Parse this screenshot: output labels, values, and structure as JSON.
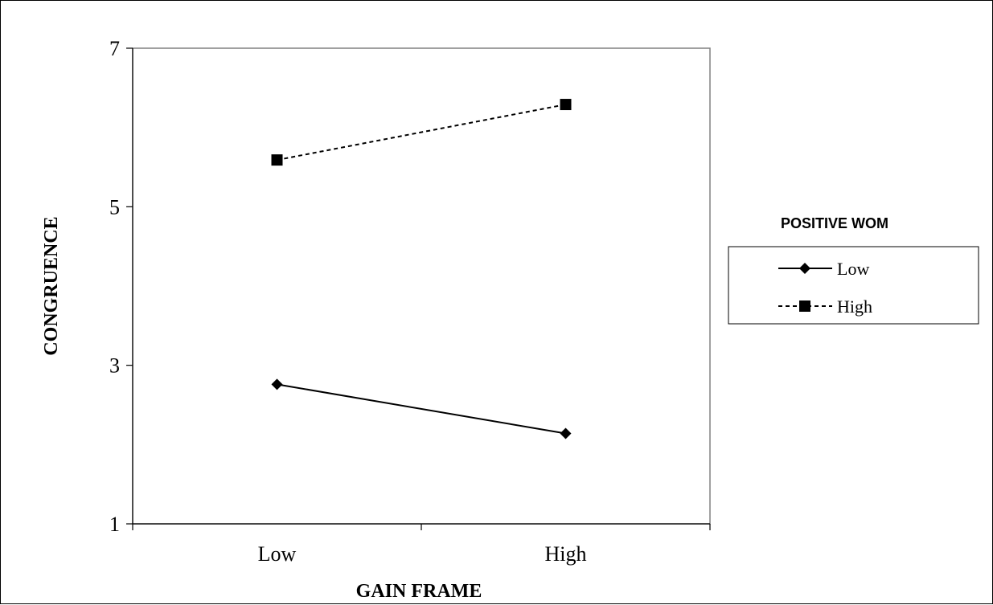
{
  "chart_data": {
    "type": "line",
    "xlabel": "GAIN FRAME",
    "ylabel": "CONGRUENCE",
    "categories": [
      "Low",
      "High"
    ],
    "ylim": [
      1,
      7
    ],
    "yticks": [
      "1",
      "3",
      "5",
      "7"
    ],
    "grid": false,
    "legend": {
      "title": "POSITIVE WOM",
      "placement": "right"
    },
    "series": [
      {
        "name": "Low",
        "values": [
          2.76,
          2.14
        ],
        "marker": "diamond",
        "line": "solid",
        "color": "#000000"
      },
      {
        "name": "High",
        "values": [
          5.59,
          6.29
        ],
        "marker": "square",
        "line": "dashed",
        "color": "#000000"
      }
    ]
  }
}
